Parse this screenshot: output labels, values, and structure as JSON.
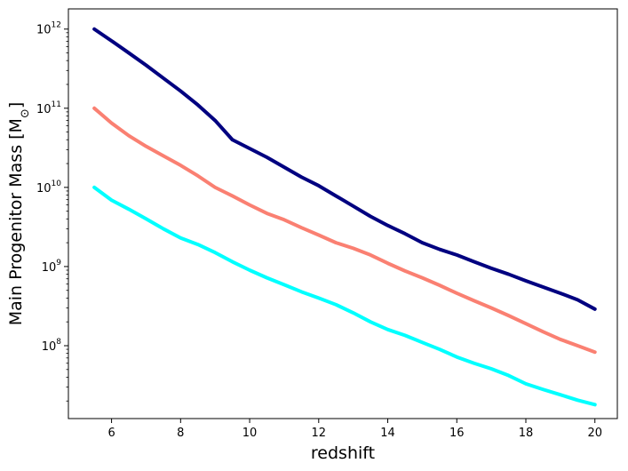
{
  "chart_data": {
    "type": "line",
    "xlabel": "redshift",
    "ylabel": "Main Progenitor Mass [M",
    "ylabel_sub": "⊙",
    "ylabel_close": "]",
    "xlim": [
      4.75,
      20.65
    ],
    "ylim": [
      12000000,
      1800000000000
    ],
    "y_scale": "log",
    "grid": false,
    "x_ticks": [
      {
        "value": 6,
        "label": "6"
      },
      {
        "value": 8,
        "label": "8"
      },
      {
        "value": 10,
        "label": "10"
      },
      {
        "value": 12,
        "label": "12"
      },
      {
        "value": 14,
        "label": "14"
      },
      {
        "value": 16,
        "label": "16"
      },
      {
        "value": 18,
        "label": "18"
      },
      {
        "value": 20,
        "label": "20"
      }
    ],
    "y_ticks": [
      {
        "value": 100000000,
        "base": "10",
        "exp": "8"
      },
      {
        "value": 1000000000,
        "base": "10",
        "exp": "9"
      },
      {
        "value": 10000000000,
        "base": "10",
        "exp": "10"
      },
      {
        "value": 100000000000,
        "base": "10",
        "exp": "11"
      },
      {
        "value": 1000000000000,
        "base": "10",
        "exp": "12"
      }
    ],
    "series": [
      {
        "color": "#000080",
        "points": [
          [
            5.5,
            1000000000000.0
          ],
          [
            6.0,
            710000000000.0
          ],
          [
            6.5,
            500000000000.0
          ],
          [
            7.0,
            350000000000.0
          ],
          [
            7.5,
            240000000000.0
          ],
          [
            8.0,
            165000000000.0
          ],
          [
            8.5,
            110000000000.0
          ],
          [
            9.0,
            70000000000.0
          ],
          [
            9.5,
            40000000000.0
          ],
          [
            10.0,
            31000000000.0
          ],
          [
            10.5,
            24000000000.0
          ],
          [
            11.0,
            18000000000.0
          ],
          [
            11.5,
            13500000000.0
          ],
          [
            12.0,
            10500000000.0
          ],
          [
            12.5,
            7800000000.0
          ],
          [
            13.0,
            5800000000.0
          ],
          [
            13.5,
            4300000000.0
          ],
          [
            14.0,
            3300000000.0
          ],
          [
            14.5,
            2600000000.0
          ],
          [
            15.0,
            2000000000.0
          ],
          [
            15.5,
            1650000000.0
          ],
          [
            16.0,
            1400000000.0
          ],
          [
            16.5,
            1150000000.0
          ],
          [
            17.0,
            950000000.0
          ],
          [
            17.5,
            800000000.0
          ],
          [
            18.0,
            660000000.0
          ],
          [
            18.5,
            550000000.0
          ],
          [
            19.0,
            460000000.0
          ],
          [
            19.5,
            380000000.0
          ],
          [
            20.0,
            290000000.0
          ]
        ]
      },
      {
        "color": "#fa8072",
        "points": [
          [
            5.5,
            100000000000.0
          ],
          [
            6.0,
            65000000000.0
          ],
          [
            6.5,
            45000000000.0
          ],
          [
            7.0,
            33000000000.0
          ],
          [
            7.5,
            25000000000.0
          ],
          [
            8.0,
            19000000000.0
          ],
          [
            8.5,
            14000000000.0
          ],
          [
            9.0,
            10000000000.0
          ],
          [
            9.5,
            7800000000.0
          ],
          [
            10.0,
            6000000000.0
          ],
          [
            10.5,
            4700000000.0
          ],
          [
            11.0,
            3900000000.0
          ],
          [
            11.5,
            3100000000.0
          ],
          [
            12.0,
            2500000000.0
          ],
          [
            12.5,
            2000000000.0
          ],
          [
            13.0,
            1700000000.0
          ],
          [
            13.5,
            1400000000.0
          ],
          [
            14.0,
            1100000000.0
          ],
          [
            14.5,
            880000000.0
          ],
          [
            15.0,
            720000000.0
          ],
          [
            15.5,
            580000000.0
          ],
          [
            16.0,
            460000000.0
          ],
          [
            16.5,
            370000000.0
          ],
          [
            17.0,
            300000000.0
          ],
          [
            17.5,
            240000000.0
          ],
          [
            18.0,
            190000000.0
          ],
          [
            18.5,
            150000000.0
          ],
          [
            19.0,
            120000000.0
          ],
          [
            19.5,
            100000000.0
          ],
          [
            20.0,
            83000000.0
          ]
        ]
      },
      {
        "color": "#00ffff",
        "points": [
          [
            5.5,
            10000000000.0
          ],
          [
            6.0,
            6900000000.0
          ],
          [
            6.5,
            5300000000.0
          ],
          [
            7.0,
            4000000000.0
          ],
          [
            7.5,
            3000000000.0
          ],
          [
            8.0,
            2300000000.0
          ],
          [
            8.5,
            1900000000.0
          ],
          [
            9.0,
            1500000000.0
          ],
          [
            9.5,
            1150000000.0
          ],
          [
            10.0,
            900000000.0
          ],
          [
            10.5,
            720000000.0
          ],
          [
            11.0,
            590000000.0
          ],
          [
            11.5,
            480000000.0
          ],
          [
            12.0,
            400000000.0
          ],
          [
            12.5,
            330000000.0
          ],
          [
            13.0,
            260000000.0
          ],
          [
            13.5,
            200000000.0
          ],
          [
            14.0,
            160000000.0
          ],
          [
            14.5,
            135000000.0
          ],
          [
            15.0,
            110000000.0
          ],
          [
            15.5,
            90000000.0
          ],
          [
            16.0,
            72000000.0
          ],
          [
            16.5,
            60000000.0
          ],
          [
            17.0,
            51000000.0
          ],
          [
            17.5,
            42000000.0
          ],
          [
            18.0,
            33000000.0
          ],
          [
            18.5,
            28000000.0
          ],
          [
            19.0,
            24000000.0
          ],
          [
            19.5,
            20500000.0
          ],
          [
            20.0,
            18000000.0
          ]
        ]
      }
    ]
  }
}
